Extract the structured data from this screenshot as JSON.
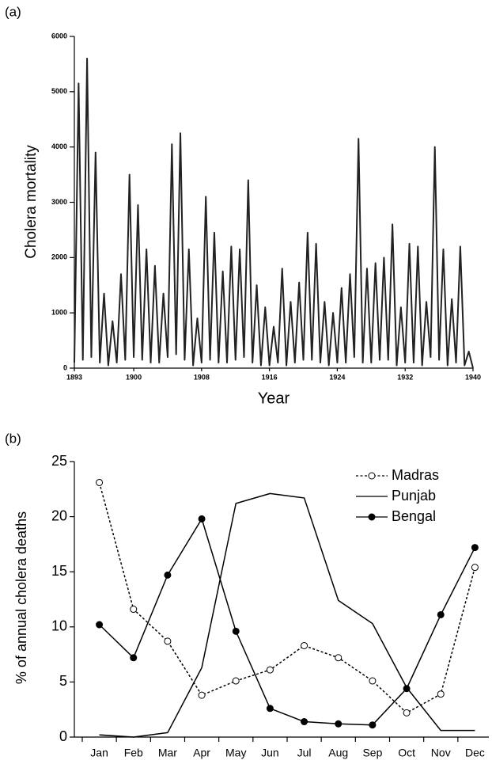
{
  "chart_data": [
    {
      "type": "line",
      "panel": "(a)",
      "x_label": "Year",
      "y_label": "Cholera mortality",
      "xlim": [
        1893,
        1940
      ],
      "xticks": [
        1893,
        1900,
        1908,
        1916,
        1924,
        1932,
        1940
      ],
      "ylim": [
        0,
        6000
      ],
      "yticks": [
        0,
        1000,
        2000,
        3000,
        4000,
        5000,
        6000
      ],
      "x": [
        1893,
        1893.5,
        1894,
        1894.5,
        1895,
        1895.5,
        1896,
        1896.5,
        1897,
        1897.5,
        1898,
        1898.5,
        1899,
        1899.5,
        1900,
        1900.5,
        1901,
        1901.5,
        1902,
        1902.5,
        1903,
        1903.5,
        1904,
        1904.5,
        1905,
        1905.5,
        1906,
        1906.5,
        1907,
        1907.5,
        1908,
        1908.5,
        1909,
        1909.5,
        1910,
        1910.5,
        1911,
        1911.5,
        1912,
        1912.5,
        1913,
        1913.5,
        1914,
        1914.5,
        1915,
        1915.5,
        1916,
        1916.5,
        1917,
        1917.5,
        1918,
        1918.5,
        1919,
        1919.5,
        1920,
        1920.5,
        1921,
        1921.5,
        1922,
        1922.5,
        1923,
        1923.5,
        1924,
        1924.5,
        1925,
        1925.5,
        1926,
        1926.5,
        1927,
        1927.5,
        1928,
        1928.5,
        1929,
        1929.5,
        1930,
        1930.5,
        1931,
        1931.5,
        1932,
        1932.5,
        1933,
        1933.5,
        1934,
        1934.5,
        1935,
        1935.5,
        1936,
        1936.5,
        1937,
        1937.5,
        1938,
        1938.5,
        1939,
        1939.5,
        1940
      ],
      "series": [
        {
          "name": "Cholera mortality",
          "color": "#222222",
          "values": [
            100,
            5150,
            150,
            5600,
            200,
            3900,
            100,
            1350,
            50,
            850,
            100,
            1700,
            150,
            3500,
            200,
            2950,
            150,
            2150,
            100,
            1850,
            100,
            1350,
            200,
            4050,
            250,
            4250,
            150,
            2150,
            50,
            900,
            100,
            3100,
            150,
            2450,
            100,
            1750,
            100,
            2200,
            150,
            2150,
            200,
            3400,
            100,
            1500,
            50,
            1100,
            50,
            750,
            100,
            1800,
            50,
            1200,
            100,
            1550,
            150,
            2450,
            150,
            2250,
            100,
            1200,
            50,
            1000,
            100,
            1450,
            100,
            1700,
            200,
            4150,
            100,
            1800,
            100,
            1900,
            150,
            2000,
            150,
            2600,
            50,
            1100,
            100,
            2250,
            100,
            2200,
            50,
            1200,
            200,
            4000,
            150,
            2150,
            50,
            1250,
            100,
            2200,
            50,
            300,
            0
          ]
        }
      ]
    },
    {
      "type": "line",
      "panel": "(b)",
      "y_label": "% of annual cholera deaths",
      "categories": [
        "Jan",
        "Feb",
        "Mar",
        "Apr",
        "May",
        "Jun",
        "Jul",
        "Aug",
        "Sep",
        "Oct",
        "Nov",
        "Dec"
      ],
      "ylim": [
        0,
        25
      ],
      "yticks": [
        0,
        5,
        10,
        15,
        20,
        25
      ],
      "legend": "upper right",
      "series": [
        {
          "name": "Madras",
          "color": "#000000",
          "line": "dotted",
          "marker": "open",
          "values": [
            23.1,
            11.6,
            8.7,
            3.8,
            5.1,
            6.1,
            8.3,
            7.2,
            5.1,
            2.2,
            3.9,
            15.4
          ]
        },
        {
          "name": "Punjab",
          "color": "#000000",
          "line": "solid",
          "marker": "none",
          "values": [
            0.2,
            0.0,
            0.4,
            6.3,
            21.2,
            22.1,
            21.7,
            12.4,
            10.3,
            4.5,
            0.6,
            0.6
          ]
        },
        {
          "name": "Bengal",
          "color": "#000000",
          "line": "solid",
          "marker": "filled",
          "values": [
            10.2,
            7.2,
            14.7,
            19.8,
            9.6,
            2.6,
            1.4,
            1.2,
            1.1,
            4.4,
            11.1,
            17.2
          ]
        }
      ]
    }
  ]
}
